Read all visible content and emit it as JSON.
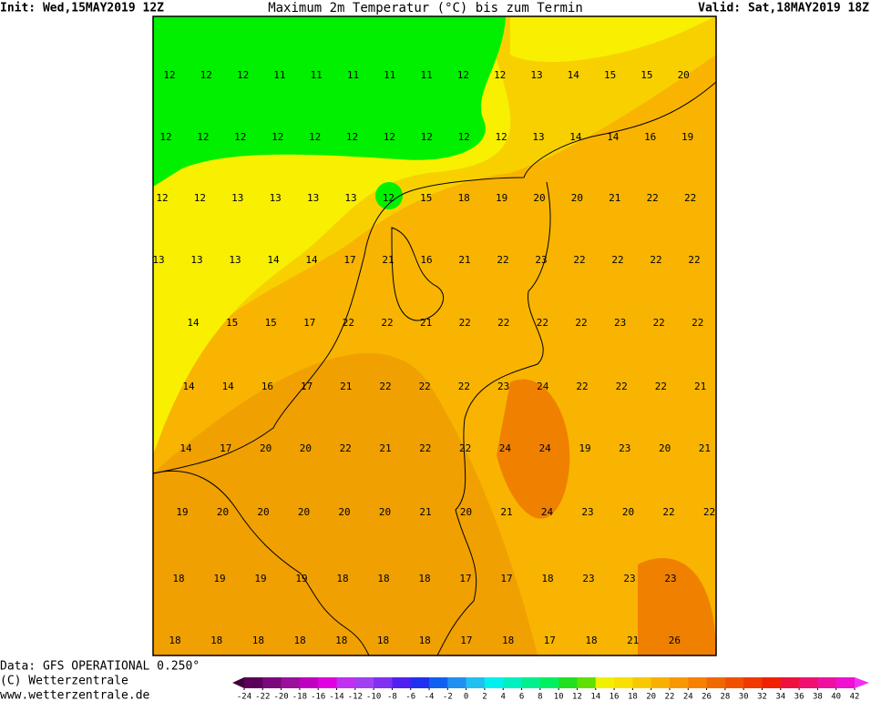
{
  "header": {
    "init": "Init: Wed,15MAY2019 12Z",
    "title": "Maximum 2m Temperatur (°C) bis zum Termin",
    "valid": "Valid: Sat,18MAY2019 18Z"
  },
  "footer": {
    "data": "Data: GFS OPERATIONAL 0.250°",
    "copyright": "(C) Wetterzentrale",
    "url": "www.wetterzentrale.de"
  },
  "grid_values": [
    [
      12,
      12,
      12,
      11,
      11,
      11,
      11,
      11,
      12,
      12,
      13,
      14,
      15,
      15,
      20
    ],
    [
      12,
      12,
      12,
      12,
      12,
      12,
      12,
      12,
      12,
      12,
      13,
      14,
      14,
      16,
      19
    ],
    [
      12,
      12,
      13,
      13,
      13,
      13,
      12,
      15,
      18,
      19,
      20,
      20,
      21,
      22,
      22
    ],
    [
      13,
      13,
      13,
      14,
      14,
      17,
      21,
      16,
      21,
      22,
      23,
      22,
      22,
      22,
      22
    ],
    [
      14,
      15,
      15,
      17,
      22,
      22,
      21,
      22,
      22,
      22,
      22,
      23,
      22,
      22
    ],
    [
      14,
      14,
      16,
      17,
      21,
      22,
      22,
      22,
      23,
      24,
      22,
      22,
      22,
      21
    ],
    [
      14,
      17,
      20,
      20,
      22,
      21,
      22,
      22,
      24,
      24,
      19,
      23,
      20,
      21
    ],
    [
      19,
      20,
      20,
      20,
      20,
      20,
      21,
      20,
      21,
      24,
      23,
      20,
      22,
      22
    ],
    [
      18,
      19,
      19,
      19,
      18,
      18,
      18,
      17,
      17,
      18,
      23,
      23,
      23
    ],
    [
      18,
      18,
      18,
      18,
      18,
      18,
      18,
      17,
      18,
      17,
      18,
      21,
      26
    ]
  ],
  "colorbar": {
    "ticks": [
      -24,
      -22,
      -20,
      -18,
      -16,
      -14,
      -12,
      -10,
      -8,
      -6,
      -4,
      -2,
      0,
      2,
      4,
      6,
      8,
      10,
      12,
      14,
      16,
      18,
      20,
      22,
      24,
      26,
      28,
      30,
      32,
      34,
      36,
      38,
      40,
      42
    ],
    "colors": [
      "#5a005a",
      "#7a0a7a",
      "#9a109a",
      "#c000c0",
      "#e000e0",
      "#c030f0",
      "#a040f0",
      "#8030f0",
      "#5020f0",
      "#2030f0",
      "#1060f0",
      "#2090f0",
      "#20c0f0",
      "#00f0f0",
      "#00f0c0",
      "#00f090",
      "#00f060",
      "#20e020",
      "#60e000",
      "#f0f000",
      "#f8e000",
      "#f8c800",
      "#f8b000",
      "#f89800",
      "#f88000",
      "#f06800",
      "#f05000",
      "#f03800",
      "#f02000",
      "#f01040",
      "#f01070",
      "#f010a0",
      "#f010d0"
    ],
    "under": "#40003a",
    "over": "#f030f0"
  }
}
